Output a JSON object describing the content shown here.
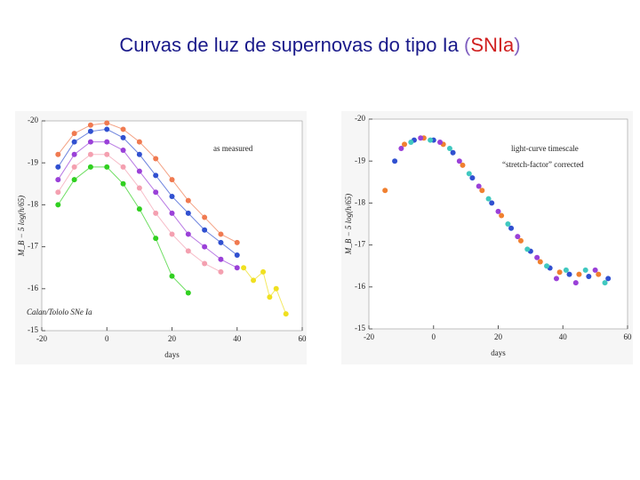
{
  "title_parts": [
    "Curvas de luz de supernovas do tipo Ia ",
    "(",
    "SNIa",
    ")"
  ],
  "chart_data": [
    {
      "type": "scatter",
      "xlabel": "days",
      "ylabel": "M_B − 5 log(h/65)",
      "annotations": [
        "as measured",
        "Calan/Tololo SNe Ia"
      ],
      "xlim": [
        -20,
        60
      ],
      "xticks": [
        -20,
        0,
        20,
        40,
        60
      ],
      "ylim": [
        -15,
        -20
      ],
      "yticks": [
        -20,
        -19,
        -18,
        -17,
        -16,
        -15
      ],
      "series": [
        {
          "color": "#f07a50",
          "x": [
            -15,
            -10,
            -5,
            0,
            5,
            10,
            15,
            20,
            25,
            30,
            35,
            40
          ],
          "values": [
            -19.2,
            -19.7,
            -19.9,
            -19.95,
            -19.8,
            -19.5,
            -19.1,
            -18.6,
            -18.1,
            -17.7,
            -17.3,
            -17.1
          ]
        },
        {
          "color": "#3050d0",
          "x": [
            -15,
            -10,
            -5,
            0,
            5,
            10,
            15,
            20,
            25,
            30,
            35,
            40
          ],
          "values": [
            -18.9,
            -19.5,
            -19.75,
            -19.8,
            -19.6,
            -19.2,
            -18.7,
            -18.2,
            -17.8,
            -17.4,
            -17.1,
            -16.8
          ]
        },
        {
          "color": "#9a40d8",
          "x": [
            -15,
            -10,
            -5,
            0,
            5,
            10,
            15,
            20,
            25,
            30,
            35,
            40
          ],
          "values": [
            -18.6,
            -19.2,
            -19.5,
            -19.5,
            -19.3,
            -18.8,
            -18.3,
            -17.8,
            -17.3,
            -17.0,
            -16.7,
            -16.5
          ]
        },
        {
          "color": "#f4a0b0",
          "x": [
            -15,
            -10,
            -5,
            0,
            5,
            10,
            15,
            20,
            25,
            30,
            35
          ],
          "values": [
            -18.3,
            -18.9,
            -19.2,
            -19.2,
            -18.9,
            -18.4,
            -17.8,
            -17.3,
            -16.9,
            -16.6,
            -16.4
          ]
        },
        {
          "color": "#30d020",
          "x": [
            -15,
            -10,
            -5,
            0,
            5,
            10,
            15,
            20,
            25
          ],
          "values": [
            -18.0,
            -18.6,
            -18.9,
            -18.9,
            -18.5,
            -17.9,
            -17.2,
            -16.3,
            -15.9
          ]
        },
        {
          "color": "#f0e020",
          "x": [
            42,
            45,
            48,
            50,
            52,
            55
          ],
          "values": [
            -16.5,
            -16.2,
            -16.4,
            -15.8,
            -16.0,
            -15.4
          ]
        }
      ]
    },
    {
      "type": "scatter",
      "xlabel": "days",
      "ylabel": "M_B − 5 log(h/65)",
      "annotations": [
        "light-curve timescale",
        "“stretch-factor” corrected"
      ],
      "xlim": [
        -20,
        60
      ],
      "xticks": [
        -20,
        0,
        20,
        40,
        60
      ],
      "ylim": [
        -15,
        -20
      ],
      "yticks": [
        -20,
        -19,
        -18,
        -17,
        -16,
        -15
      ],
      "series": [
        {
          "color": "#f08030",
          "x": [
            -15,
            -9,
            -3,
            3,
            9,
            15,
            21,
            27,
            33,
            39,
            45,
            51
          ],
          "values": [
            -18.3,
            -19.4,
            -19.55,
            -19.4,
            -18.9,
            -18.3,
            -17.7,
            -17.1,
            -16.6,
            -16.35,
            -16.3,
            -16.3
          ]
        },
        {
          "color": "#3050d0",
          "x": [
            -12,
            -6,
            0,
            6,
            12,
            18,
            24,
            30,
            36,
            42,
            48,
            54
          ],
          "values": [
            -19.0,
            -19.5,
            -19.5,
            -19.2,
            -18.6,
            -18.0,
            -17.4,
            -16.85,
            -16.45,
            -16.3,
            -16.25,
            -16.2
          ]
        },
        {
          "color": "#9a40d8",
          "x": [
            -10,
            -4,
            2,
            8,
            14,
            20,
            26,
            32,
            38,
            44,
            50
          ],
          "values": [
            -19.3,
            -19.55,
            -19.45,
            -19.0,
            -18.4,
            -17.8,
            -17.2,
            -16.7,
            -16.2,
            -16.1,
            -16.4
          ]
        },
        {
          "color": "#40c8c0",
          "x": [
            -7,
            -1,
            5,
            11,
            17,
            23,
            29,
            35,
            41,
            47,
            53
          ],
          "values": [
            -19.45,
            -19.5,
            -19.3,
            -18.7,
            -18.1,
            -17.5,
            -16.9,
            -16.5,
            -16.4,
            -16.4,
            -16.1
          ]
        }
      ]
    }
  ]
}
